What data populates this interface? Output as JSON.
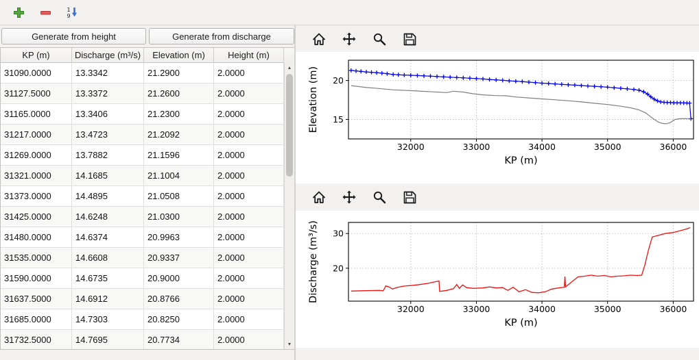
{
  "main_toolbar": {
    "buttons": [
      {
        "name": "add-row",
        "icon": "plus-icon"
      },
      {
        "name": "remove-row",
        "icon": "minus-icon"
      },
      {
        "name": "sort-rows",
        "icon": "sort-numeric-icon"
      }
    ]
  },
  "left_panel": {
    "generate_height_label": "Generate from height",
    "generate_discharge_label": "Generate from discharge",
    "table": {
      "headers": [
        "KP (m)",
        "Discharge (m³/s)",
        "Elevation (m)",
        "Height (m)"
      ],
      "rows": [
        [
          "31090.0000",
          "13.3342",
          "21.2900",
          "2.0000"
        ],
        [
          "31127.5000",
          "13.3372",
          "21.2600",
          "2.0000"
        ],
        [
          "31165.0000",
          "13.3406",
          "21.2300",
          "2.0000"
        ],
        [
          "31217.0000",
          "13.4723",
          "21.2092",
          "2.0000"
        ],
        [
          "31269.0000",
          "13.7882",
          "21.1596",
          "2.0000"
        ],
        [
          "31321.0000",
          "14.1685",
          "21.1004",
          "2.0000"
        ],
        [
          "31373.0000",
          "14.4895",
          "21.0508",
          "2.0000"
        ],
        [
          "31425.0000",
          "14.6248",
          "21.0300",
          "2.0000"
        ],
        [
          "31480.0000",
          "14.6374",
          "20.9963",
          "2.0000"
        ],
        [
          "31535.0000",
          "14.6608",
          "20.9337",
          "2.0000"
        ],
        [
          "31590.0000",
          "14.6735",
          "20.9000",
          "2.0000"
        ],
        [
          "31637.5000",
          "14.6912",
          "20.8766",
          "2.0000"
        ],
        [
          "31685.0000",
          "14.7303",
          "20.8250",
          "2.0000"
        ],
        [
          "31732.5000",
          "14.7695",
          "20.7734",
          "2.0000"
        ]
      ]
    },
    "scrollbar": {
      "up": "▲",
      "down": "▼"
    }
  },
  "nav_toolbar": {
    "icons": [
      "home",
      "pan",
      "zoom",
      "save"
    ]
  },
  "chart_data": [
    {
      "type": "line",
      "title": "",
      "xlabel": "KP (m)",
      "ylabel": "Elevation (m)",
      "xlim": [
        31050,
        36310
      ],
      "ylim": [
        12.5,
        22.6
      ],
      "xticks": [
        32000,
        33000,
        34000,
        35000,
        36000
      ],
      "yticks": [
        15,
        20
      ],
      "grid": true,
      "legend": false,
      "series": [
        {
          "name": "water-elevation",
          "color": "#0000ee",
          "marker": "+",
          "line_width": 1.2,
          "points": [
            [
              31090,
              21.29
            ],
            [
              31165,
              21.23
            ],
            [
              31240,
              21.17
            ],
            [
              31321,
              21.1
            ],
            [
              31400,
              21.05
            ],
            [
              31480,
              21.0
            ],
            [
              31560,
              20.94
            ],
            [
              31640,
              20.88
            ],
            [
              31732,
              20.77
            ],
            [
              31810,
              20.73
            ],
            [
              31900,
              20.7
            ],
            [
              32000,
              20.67
            ],
            [
              32100,
              20.63
            ],
            [
              32200,
              20.59
            ],
            [
              32300,
              20.55
            ],
            [
              32400,
              20.51
            ],
            [
              32500,
              20.47
            ],
            [
              32600,
              20.42
            ],
            [
              32700,
              20.38
            ],
            [
              32800,
              20.34
            ],
            [
              32900,
              20.29
            ],
            [
              33000,
              20.25
            ],
            [
              33100,
              20.19
            ],
            [
              33200,
              20.13
            ],
            [
              33300,
              20.08
            ],
            [
              33400,
              20.02
            ],
            [
              33500,
              19.96
            ],
            [
              33600,
              19.9
            ],
            [
              33700,
              19.85
            ],
            [
              33800,
              19.79
            ],
            [
              33900,
              19.73
            ],
            [
              34000,
              19.66
            ],
            [
              34100,
              19.61
            ],
            [
              34200,
              19.56
            ],
            [
              34300,
              19.5
            ],
            [
              34400,
              19.45
            ],
            [
              34500,
              19.4
            ],
            [
              34600,
              19.35
            ],
            [
              34700,
              19.3
            ],
            [
              34800,
              19.25
            ],
            [
              34900,
              19.2
            ],
            [
              35000,
              19.14
            ],
            [
              35100,
              19.07
            ],
            [
              35200,
              19.0
            ],
            [
              35300,
              18.93
            ],
            [
              35400,
              18.85
            ],
            [
              35480,
              18.75
            ],
            [
              35550,
              18.55
            ],
            [
              35610,
              18.25
            ],
            [
              35660,
              17.9
            ],
            [
              35710,
              17.6
            ],
            [
              35760,
              17.38
            ],
            [
              35810,
              17.25
            ],
            [
              35860,
              17.2
            ],
            [
              35910,
              17.18
            ],
            [
              35960,
              17.16
            ],
            [
              36010,
              17.15
            ],
            [
              36060,
              17.14
            ],
            [
              36110,
              17.13
            ],
            [
              36160,
              17.12
            ],
            [
              36210,
              17.11
            ],
            [
              36250,
              17.1
            ],
            [
              36270,
              15.1
            ]
          ]
        },
        {
          "name": "bed-elevation",
          "color": "#7f7f7f",
          "marker": "none",
          "line_width": 1.2,
          "points": [
            [
              31090,
              19.34
            ],
            [
              31300,
              19.12
            ],
            [
              31500,
              18.98
            ],
            [
              31732,
              18.8
            ],
            [
              32000,
              18.7
            ],
            [
              32200,
              18.6
            ],
            [
              32400,
              18.52
            ],
            [
              32550,
              18.45
            ],
            [
              32650,
              18.62
            ],
            [
              32800,
              18.52
            ],
            [
              32950,
              18.3
            ],
            [
              33100,
              18.16
            ],
            [
              33300,
              18.06
            ],
            [
              33450,
              18.04
            ],
            [
              33600,
              17.88
            ],
            [
              33800,
              17.76
            ],
            [
              34000,
              17.64
            ],
            [
              34200,
              17.52
            ],
            [
              34400,
              17.4
            ],
            [
              34600,
              17.25
            ],
            [
              34800,
              17.08
            ],
            [
              35000,
              16.92
            ],
            [
              35200,
              16.7
            ],
            [
              35350,
              16.5
            ],
            [
              35480,
              16.22
            ],
            [
              35580,
              15.85
            ],
            [
              35680,
              15.2
            ],
            [
              35770,
              14.68
            ],
            [
              35840,
              14.48
            ],
            [
              35900,
              14.45
            ],
            [
              35960,
              14.62
            ],
            [
              36030,
              15.0
            ],
            [
              36110,
              15.1
            ],
            [
              36200,
              15.12
            ],
            [
              36270,
              15.05
            ]
          ]
        }
      ]
    },
    {
      "type": "line",
      "title": "",
      "xlabel": "KP (m)",
      "ylabel": "Discharge (m³/s)",
      "xlim": [
        31050,
        36310
      ],
      "ylim": [
        10.5,
        33.2
      ],
      "xticks": [
        32000,
        33000,
        34000,
        35000,
        36000
      ],
      "yticks": [
        20,
        30
      ],
      "grid": true,
      "legend": false,
      "series": [
        {
          "name": "discharge",
          "color": "#ee1111",
          "marker": "none",
          "line_width": 1.3,
          "points": [
            [
              31090,
              13.4
            ],
            [
              31250,
              13.5
            ],
            [
              31400,
              13.55
            ],
            [
              31520,
              13.6
            ],
            [
              31580,
              13.5
            ],
            [
              31620,
              14.9
            ],
            [
              31680,
              14.5
            ],
            [
              31720,
              14.0
            ],
            [
              31800,
              14.5
            ],
            [
              31900,
              14.85
            ],
            [
              32000,
              15.0
            ],
            [
              32100,
              15.2
            ],
            [
              32250,
              15.6
            ],
            [
              32350,
              16.0
            ],
            [
              32430,
              16.3
            ],
            [
              32440,
              13.3
            ],
            [
              32550,
              13.6
            ],
            [
              32650,
              14.1
            ],
            [
              32700,
              15.3
            ],
            [
              32740,
              14.2
            ],
            [
              32790,
              15.2
            ],
            [
              32850,
              14.4
            ],
            [
              32950,
              14.2
            ],
            [
              33100,
              14.3
            ],
            [
              33200,
              14.6
            ],
            [
              33300,
              14.3
            ],
            [
              33400,
              14.4
            ],
            [
              33480,
              13.6
            ],
            [
              33560,
              14.5
            ],
            [
              33650,
              13.2
            ],
            [
              33750,
              13.8
            ],
            [
              33850,
              13.0
            ],
            [
              33950,
              12.9
            ],
            [
              34050,
              13.2
            ],
            [
              34150,
              14.0
            ],
            [
              34250,
              14.3
            ],
            [
              34340,
              14.5
            ],
            [
              34350,
              17.6
            ],
            [
              34360,
              14.6
            ],
            [
              34450,
              16.0
            ],
            [
              34550,
              17.5
            ],
            [
              34650,
              17.7
            ],
            [
              34750,
              18.0
            ],
            [
              34850,
              17.7
            ],
            [
              34950,
              17.9
            ],
            [
              35050,
              17.5
            ],
            [
              35150,
              17.7
            ],
            [
              35250,
              17.8
            ],
            [
              35350,
              18.0
            ],
            [
              35450,
              17.9
            ],
            [
              35520,
              18.0
            ],
            [
              35570,
              21.0
            ],
            [
              35620,
              25.0
            ],
            [
              35680,
              29.0
            ],
            [
              35780,
              29.5
            ],
            [
              35880,
              30.0
            ],
            [
              36000,
              30.3
            ],
            [
              36100,
              30.8
            ],
            [
              36200,
              31.3
            ],
            [
              36260,
              31.7
            ]
          ]
        }
      ]
    }
  ]
}
